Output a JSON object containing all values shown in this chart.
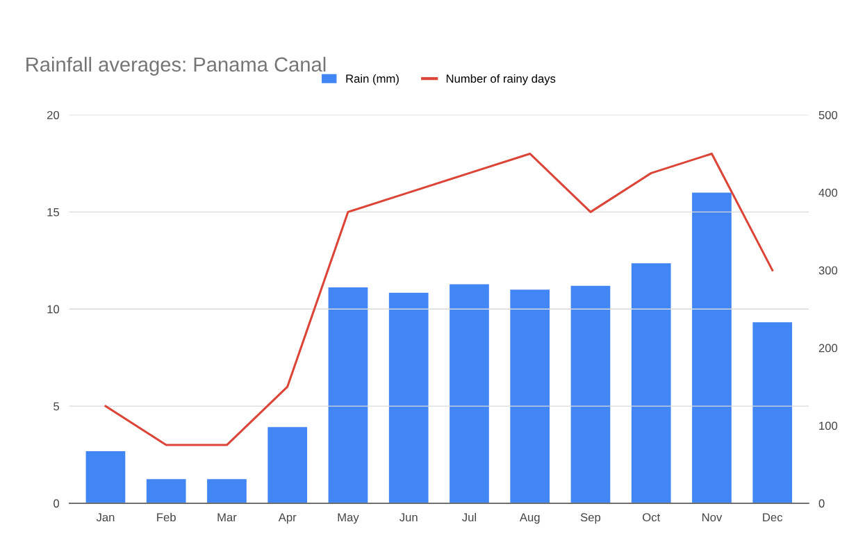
{
  "chart_data": {
    "type": "bar",
    "title": "Rainfall averages: Panama Canal",
    "categories": [
      "Jan",
      "Feb",
      "Mar",
      "Apr",
      "May",
      "Jun",
      "Jul",
      "Aug",
      "Sep",
      "Oct",
      "Nov",
      "Dec"
    ],
    "series": [
      {
        "name": "Rain (mm)",
        "axis": "y2",
        "color": "#4285f4",
        "values": [
          67,
          31,
          31,
          98,
          278,
          271,
          282,
          275,
          280,
          309,
          400,
          233
        ]
      },
      {
        "name": "Number of rainy days",
        "type": "line",
        "axis": "y",
        "color": "#db4437",
        "values": [
          5,
          3,
          3,
          6,
          15,
          16,
          17,
          18,
          15,
          17,
          18,
          12
        ]
      }
    ],
    "ylim": [
      0,
      20
    ],
    "yticks": [
      0,
      5,
      10,
      15,
      20
    ],
    "y2lim": [
      0,
      500
    ],
    "y2ticks": [
      0,
      100,
      200,
      300,
      400,
      500
    ],
    "grid": "y",
    "legend": "top",
    "marker": "none",
    "line_style": "solid"
  }
}
